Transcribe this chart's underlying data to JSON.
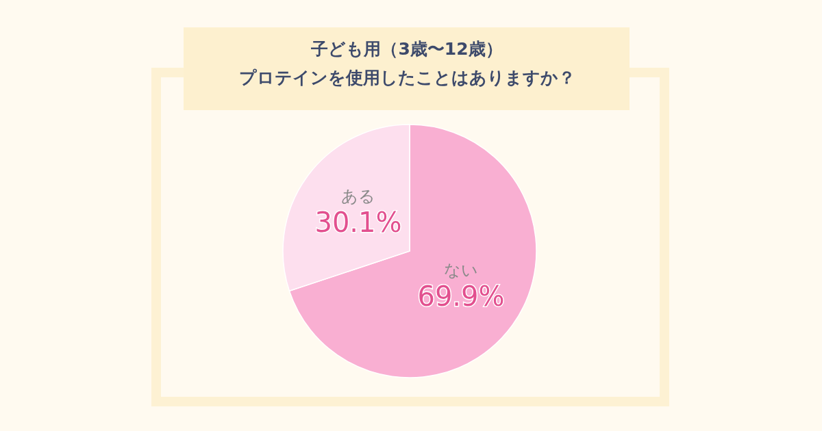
{
  "chart_data": {
    "type": "pie",
    "title": "子ども用（3歳〜12歳）",
    "subtitle": "プロテインを使用したことはありますか？",
    "categories": [
      "ない",
      "ある"
    ],
    "values": [
      69.9,
      30.1
    ],
    "value_labels": [
      "69.9%",
      "30.1%"
    ],
    "colors": [
      "#f9afd2",
      "#fddfee"
    ]
  }
}
